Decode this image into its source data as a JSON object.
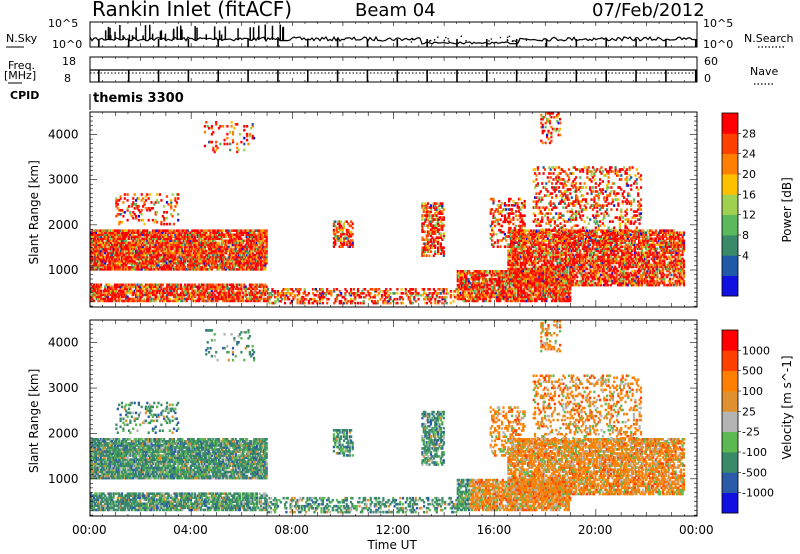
{
  "header": {
    "station": "Rankin Inlet (fitACF)",
    "beam": "Beam 04",
    "date": "07/Feb/2012"
  },
  "panel_labels": {
    "nsky": "N.Sky",
    "nsearch": "N.Search",
    "freq": "Freq.",
    "freq_unit": "[MHz]",
    "nave": "Nave",
    "cpid": "CPID",
    "cpid_value": "themis 3300"
  },
  "top_axes": {
    "nsky_ticks": [
      "10^5",
      "10^0"
    ],
    "nsearch_ticks": [
      "10^5",
      "10^0"
    ],
    "freq_ticks": [
      "18",
      "8"
    ],
    "nave_ticks": [
      "60",
      "0"
    ]
  },
  "colors": {
    "power_scale": [
      "#1010e0",
      "#1e5aa8",
      "#3a8a6a",
      "#5cb85c",
      "#a0d050",
      "#ffc000",
      "#ff8000",
      "#ff4000",
      "#ff0000"
    ],
    "velocity_scale": [
      "#1010e0",
      "#2a5aa8",
      "#3a8a6a",
      "#5cb850",
      "#b4b4b4",
      "#e09030",
      "#ff8000",
      "#ff4000",
      "#ff0000"
    ]
  },
  "chart_data": [
    {
      "type": "heatmap",
      "title": "Power",
      "xlabel": "",
      "ylabel": "Slant Range [km]",
      "ylim": [
        180,
        4500
      ],
      "yticks": [
        1000,
        2000,
        3000,
        4000
      ],
      "colorbar_label": "Power [dB]",
      "colorbar_ticks": [
        "28",
        "24",
        "20",
        "16",
        "12",
        "8",
        "4"
      ],
      "colorbar_range": [
        0,
        32
      ]
    },
    {
      "type": "heatmap",
      "title": "Velocity",
      "xlabel": "Time UT",
      "ylabel": "Slant Range [km]",
      "ylim": [
        180,
        4500
      ],
      "yticks": [
        1000,
        2000,
        3000,
        4000
      ],
      "xticks": [
        "00:00",
        "04:00",
        "08:00",
        "12:00",
        "16:00",
        "20:00",
        "00:00"
      ],
      "colorbar_label": "Velocity [m s^-1]",
      "colorbar_ticks": [
        "1000",
        "500",
        "100",
        "25",
        "-25",
        "-100",
        "-500",
        "-1000"
      ]
    }
  ]
}
